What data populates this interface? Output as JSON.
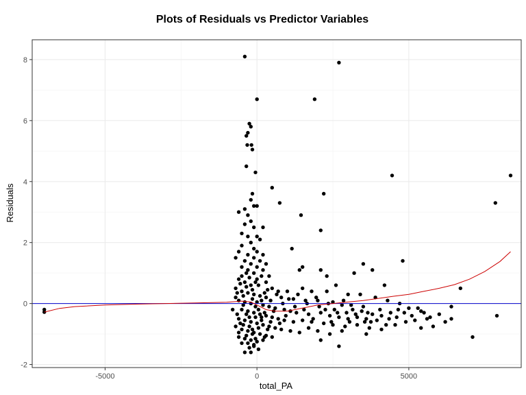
{
  "chart_data": {
    "type": "scatter",
    "title": "Plots of Residuals vs Predictor Variables",
    "xlabel": "total_PA",
    "ylabel": "Residuals",
    "xlim": [
      -7400,
      8700
    ],
    "ylim": [
      -2.1,
      8.65
    ],
    "x_ticks": [
      -5000,
      0,
      5000
    ],
    "x_tick_labels": [
      "-5000",
      "0",
      "5000"
    ],
    "y_ticks": [
      -2,
      0,
      2,
      4,
      6,
      8
    ],
    "y_tick_labels": [
      "-2",
      "0",
      "2",
      "4",
      "6",
      "8"
    ],
    "grid": true,
    "colors": {
      "points": "#000000",
      "smooth_line": "#cc0000",
      "reference_line": "#0000cc",
      "grid_major": "#ebebeb",
      "grid_minor": "#f5f5f5",
      "panel_border": "#333333"
    },
    "reference_line_y": 0,
    "points": [
      [
        -7000,
        -0.2
      ],
      [
        -7000,
        -0.28
      ],
      [
        -400,
        8.1
      ],
      [
        2700,
        7.9
      ],
      [
        0,
        6.7
      ],
      [
        1900,
        6.7
      ],
      [
        -250,
        5.9
      ],
      [
        -200,
        5.8
      ],
      [
        -300,
        5.6
      ],
      [
        -350,
        5.5
      ],
      [
        -320,
        5.2
      ],
      [
        -180,
        5.2
      ],
      [
        -150,
        5.05
      ],
      [
        -350,
        4.5
      ],
      [
        -50,
        4.3
      ],
      [
        4450,
        4.2
      ],
      [
        8350,
        4.2
      ],
      [
        2200,
        3.6
      ],
      [
        500,
        3.8
      ],
      [
        -150,
        3.6
      ],
      [
        -200,
        3.4
      ],
      [
        750,
        3.3
      ],
      [
        7850,
        3.3
      ],
      [
        -100,
        3.2
      ],
      [
        -400,
        3.1
      ],
      [
        -600,
        3.0
      ],
      [
        0,
        3.2
      ],
      [
        -300,
        2.9
      ],
      [
        1450,
        2.9
      ],
      [
        -200,
        2.7
      ],
      [
        -400,
        2.6
      ],
      [
        -100,
        2.5
      ],
      [
        200,
        2.5
      ],
      [
        2100,
        2.4
      ],
      [
        -500,
        2.3
      ],
      [
        -300,
        2.2
      ],
      [
        0,
        2.2
      ],
      [
        -200,
        2.0
      ],
      [
        100,
        2.1
      ],
      [
        -500,
        1.9
      ],
      [
        -100,
        1.8
      ],
      [
        -600,
        1.7
      ],
      [
        -300,
        1.6
      ],
      [
        0,
        1.7
      ],
      [
        200,
        1.6
      ],
      [
        1150,
        1.8
      ],
      [
        -700,
        1.5
      ],
      [
        -400,
        1.4
      ],
      [
        -100,
        1.5
      ],
      [
        100,
        1.4
      ],
      [
        -200,
        1.3
      ],
      [
        300,
        1.3
      ],
      [
        -500,
        1.2
      ],
      [
        0,
        1.2
      ],
      [
        1500,
        1.2
      ],
      [
        3500,
        1.3
      ],
      [
        4800,
        1.4
      ],
      [
        -300,
        1.1
      ],
      [
        200,
        1.1
      ],
      [
        1400,
        1.1
      ],
      [
        2100,
        1.1
      ],
      [
        3200,
        1.0
      ],
      [
        3800,
        1.1
      ],
      [
        -100,
        1.0
      ],
      [
        400,
        0.9
      ],
      [
        2300,
        0.9
      ],
      [
        2600,
        0.6
      ],
      [
        -600,
        0.8
      ],
      [
        -400,
        0.7
      ],
      [
        0,
        0.8
      ],
      [
        300,
        0.7
      ],
      [
        4200,
        0.6
      ],
      [
        6700,
        0.5
      ],
      [
        -200,
        0.6
      ],
      [
        500,
        0.5
      ],
      [
        700,
        0.4
      ],
      [
        1000,
        0.4
      ],
      [
        1500,
        0.5
      ],
      [
        1800,
        0.4
      ],
      [
        2300,
        0.4
      ],
      [
        3000,
        0.3
      ],
      [
        3400,
        0.3
      ],
      [
        -700,
        0.5
      ],
      [
        -500,
        0.4
      ],
      [
        -300,
        0.35
      ],
      [
        -100,
        0.3
      ],
      [
        100,
        0.25
      ],
      [
        300,
        0.2
      ],
      [
        800,
        0.2
      ],
      [
        1200,
        0.15
      ],
      [
        1600,
        0.1
      ],
      [
        2000,
        0.1
      ],
      [
        2500,
        0.05
      ],
      [
        2800,
        -0.05
      ],
      [
        3100,
        -0.05
      ],
      [
        3500,
        -0.1
      ],
      [
        3900,
        0.2
      ],
      [
        4300,
        0.1
      ],
      [
        4700,
        0.0
      ],
      [
        5000,
        -0.15
      ],
      [
        5400,
        -0.25
      ],
      [
        6400,
        -0.1
      ],
      [
        -600,
        0.1
      ],
      [
        -400,
        0.05
      ],
      [
        -200,
        0.0
      ],
      [
        0,
        0.05
      ],
      [
        200,
        -0.05
      ],
      [
        400,
        -0.1
      ],
      [
        600,
        -0.15
      ],
      [
        900,
        -0.2
      ],
      [
        1100,
        -0.25
      ],
      [
        1300,
        -0.3
      ],
      [
        1700,
        -0.35
      ],
      [
        2100,
        -0.3
      ],
      [
        2400,
        -0.4
      ],
      [
        2700,
        -0.45
      ],
      [
        3000,
        -0.5
      ],
      [
        3300,
        -0.45
      ],
      [
        3600,
        -0.5
      ],
      [
        3800,
        -0.35
      ],
      [
        4100,
        -0.4
      ],
      [
        4400,
        -0.3
      ],
      [
        4600,
        -0.45
      ],
      [
        5200,
        -0.55
      ],
      [
        5600,
        -0.5
      ],
      [
        6400,
        -0.5
      ],
      [
        7900,
        -0.4
      ],
      [
        -500,
        -0.2
      ],
      [
        -300,
        -0.25
      ],
      [
        -100,
        -0.3
      ],
      [
        100,
        -0.35
      ],
      [
        300,
        -0.4
      ],
      [
        500,
        -0.45
      ],
      [
        700,
        -0.5
      ],
      [
        900,
        -0.55
      ],
      [
        1200,
        -0.6
      ],
      [
        1500,
        -0.55
      ],
      [
        1800,
        -0.6
      ],
      [
        2200,
        -0.65
      ],
      [
        2500,
        -0.7
      ],
      [
        2900,
        -0.75
      ],
      [
        3300,
        -0.7
      ],
      [
        3700,
        -0.8
      ],
      [
        4100,
        -0.85
      ],
      [
        4900,
        -0.6
      ],
      [
        5400,
        -0.8
      ],
      [
        5800,
        -0.75
      ],
      [
        -600,
        -0.5
      ],
      [
        -400,
        -0.55
      ],
      [
        -200,
        -0.6
      ],
      [
        0,
        -0.65
      ],
      [
        200,
        -0.7
      ],
      [
        400,
        -0.75
      ],
      [
        600,
        -0.8
      ],
      [
        800,
        -0.85
      ],
      [
        1100,
        -0.9
      ],
      [
        1400,
        -0.95
      ],
      [
        1700,
        -0.8
      ],
      [
        2000,
        -0.9
      ],
      [
        2400,
        -1.0
      ],
      [
        2800,
        -0.9
      ],
      [
        3600,
        -1.0
      ],
      [
        -500,
        -0.85
      ],
      [
        -300,
        -0.9
      ],
      [
        -100,
        -0.95
      ],
      [
        100,
        -1.0
      ],
      [
        300,
        -1.05
      ],
      [
        500,
        -1.1
      ],
      [
        -600,
        -1.1
      ],
      [
        -400,
        -1.15
      ],
      [
        -200,
        -1.2
      ],
      [
        0,
        -1.25
      ],
      [
        200,
        -1.2
      ],
      [
        -300,
        -1.3
      ],
      [
        -100,
        -1.35
      ],
      [
        2100,
        -1.2
      ],
      [
        7100,
        -1.1
      ],
      [
        -400,
        -1.6
      ],
      [
        -200,
        -1.6
      ],
      [
        -100,
        -1.4
      ],
      [
        2700,
        -1.4
      ],
      [
        -700,
        0.2
      ],
      [
        -800,
        -0.2
      ],
      [
        -500,
        0.9
      ],
      [
        -450,
        -0.7
      ],
      [
        -350,
        1.0
      ],
      [
        -250,
        -0.45
      ],
      [
        -150,
        0.45
      ],
      [
        -50,
        -0.1
      ],
      [
        50,
        0.6
      ],
      [
        150,
        -0.55
      ],
      [
        250,
        0.35
      ],
      [
        350,
        -0.85
      ],
      [
        450,
        0.1
      ],
      [
        550,
        -0.25
      ],
      [
        650,
        0.3
      ],
      [
        750,
        -0.65
      ],
      [
        850,
        0.0
      ],
      [
        950,
        -0.4
      ],
      [
        1050,
        0.15
      ],
      [
        1250,
        -0.1
      ],
      [
        1350,
        0.3
      ],
      [
        1550,
        -0.2
      ],
      [
        1650,
        0.0
      ],
      [
        1850,
        -0.5
      ],
      [
        1950,
        0.2
      ],
      [
        2050,
        -0.1
      ],
      [
        2250,
        -0.2
      ],
      [
        2350,
        0.0
      ],
      [
        2450,
        -0.6
      ],
      [
        2550,
        -0.2
      ],
      [
        2650,
        -0.3
      ],
      [
        2850,
        0.1
      ],
      [
        2950,
        -0.3
      ],
      [
        3050,
        -0.6
      ],
      [
        3150,
        -0.2
      ],
      [
        3250,
        -0.35
      ],
      [
        3450,
        -0.25
      ],
      [
        3550,
        -0.6
      ],
      [
        3650,
        -0.3
      ],
      [
        3750,
        -0.6
      ],
      [
        3950,
        -0.55
      ],
      [
        4050,
        -0.2
      ],
      [
        4250,
        -0.7
      ],
      [
        4350,
        -0.5
      ],
      [
        4550,
        -0.7
      ],
      [
        4650,
        -0.2
      ],
      [
        4850,
        -0.3
      ],
      [
        5100,
        -0.4
      ],
      [
        5300,
        -0.15
      ],
      [
        5500,
        -0.3
      ],
      [
        5700,
        -0.45
      ],
      [
        6000,
        -0.35
      ],
      [
        6200,
        -0.6
      ],
      [
        -650,
        -0.35
      ],
      [
        -550,
        0.65
      ],
      [
        -450,
        -0.05
      ],
      [
        -350,
        0.55
      ],
      [
        -250,
        -0.75
      ],
      [
        -150,
        0.15
      ],
      [
        -50,
        -0.45
      ],
      [
        50,
        -0.2
      ],
      [
        150,
        0.1
      ],
      [
        250,
        -0.3
      ],
      [
        350,
        0.45
      ],
      [
        450,
        -0.6
      ],
      [
        -650,
        0.35
      ],
      [
        -550,
        -0.65
      ],
      [
        -450,
        0.25
      ],
      [
        -350,
        -0.35
      ],
      [
        -250,
        0.85
      ],
      [
        -150,
        -1.0
      ],
      [
        -50,
        0.7
      ],
      [
        50,
        -0.8
      ],
      [
        150,
        0.9
      ],
      [
        250,
        -1.1
      ],
      [
        -700,
        -0.75
      ],
      [
        -600,
        -0.95
      ],
      [
        -500,
        -1.3
      ],
      [
        -350,
        -1.05
      ],
      [
        -250,
        -1.45
      ],
      [
        -150,
        -0.85
      ],
      [
        -50,
        -1.15
      ],
      [
        50,
        -1.5
      ],
      [
        150,
        -0.45
      ]
    ],
    "smooth_line": [
      [
        -7000,
        -0.28
      ],
      [
        -6500,
        -0.16
      ],
      [
        -6000,
        -0.1
      ],
      [
        -5000,
        -0.05
      ],
      [
        -4000,
        -0.02
      ],
      [
        -3000,
        0.0
      ],
      [
        -2000,
        0.02
      ],
      [
        -1000,
        0.04
      ],
      [
        -500,
        0.08
      ],
      [
        -200,
        0.05
      ],
      [
        0,
        -0.05
      ],
      [
        300,
        -0.2
      ],
      [
        600,
        -0.25
      ],
      [
        1000,
        -0.25
      ],
      [
        1500,
        -0.15
      ],
      [
        2000,
        -0.05
      ],
      [
        2500,
        0.0
      ],
      [
        3000,
        0.05
      ],
      [
        3500,
        0.1
      ],
      [
        4000,
        0.17
      ],
      [
        4500,
        0.24
      ],
      [
        5000,
        0.3
      ],
      [
        5500,
        0.4
      ],
      [
        6000,
        0.5
      ],
      [
        6500,
        0.62
      ],
      [
        7000,
        0.8
      ],
      [
        7500,
        1.05
      ],
      [
        8000,
        1.38
      ],
      [
        8350,
        1.7
      ]
    ]
  }
}
